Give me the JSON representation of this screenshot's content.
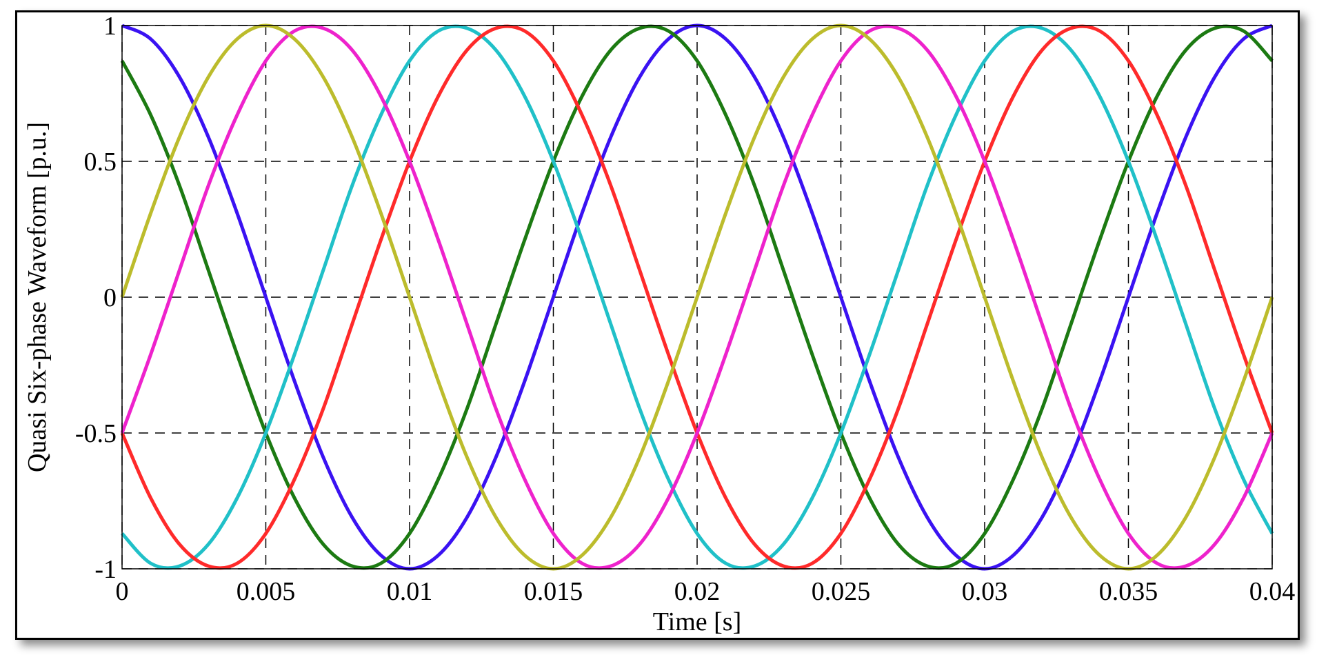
{
  "chart_data": {
    "type": "line",
    "x_label": "Time [s]",
    "y_label": "Quasi Six-phase Waveform [p.u.]",
    "x": [
      0,
      0.001,
      0.002,
      0.003,
      0.004,
      0.005,
      0.006,
      0.007,
      0.008,
      0.009,
      0.01,
      0.011,
      0.012,
      0.013,
      0.014,
      0.015,
      0.016,
      0.017,
      0.018,
      0.019,
      0.02,
      0.021,
      0.022,
      0.023,
      0.024,
      0.025,
      0.026,
      0.027,
      0.028,
      0.029,
      0.03,
      0.031,
      0.032,
      0.033,
      0.034,
      0.035,
      0.036,
      0.037,
      0.038,
      0.039,
      0.04
    ],
    "series": [
      {
        "color": "#3a12f2",
        "values": [
          1,
          0.95,
          0.81,
          0.59,
          0.31,
          0,
          -0.31,
          -0.59,
          -0.81,
          -0.95,
          -1,
          -0.95,
          -0.81,
          -0.59,
          -0.31,
          0,
          0.31,
          0.59,
          0.81,
          0.95,
          1,
          0.95,
          0.81,
          0.59,
          0.31,
          0,
          -0.31,
          -0.59,
          -0.81,
          -0.95,
          -1,
          -0.95,
          -0.81,
          -0.59,
          -0.31,
          0,
          0.31,
          0.59,
          0.81,
          0.95,
          1
        ]
      },
      {
        "color": "#1c7a12",
        "values": [
          0.87,
          0.67,
          0.41,
          0.1,
          -0.21,
          -0.5,
          -0.74,
          -0.91,
          -0.99,
          -0.98,
          -0.87,
          -0.67,
          -0.41,
          -0.1,
          0.21,
          0.5,
          0.74,
          0.91,
          0.99,
          0.98,
          0.87,
          0.67,
          0.41,
          0.1,
          -0.21,
          -0.5,
          -0.74,
          -0.91,
          -0.99,
          -0.98,
          -0.87,
          -0.67,
          -0.41,
          -0.1,
          0.21,
          0.5,
          0.74,
          0.91,
          0.99,
          0.98,
          0.87
        ]
      },
      {
        "color": "#20c0c8",
        "values": [
          -0.87,
          -0.98,
          -0.99,
          -0.91,
          -0.74,
          -0.5,
          -0.21,
          0.1,
          0.41,
          0.67,
          0.87,
          0.98,
          0.99,
          0.91,
          0.74,
          0.5,
          0.21,
          -0.1,
          -0.41,
          -0.67,
          -0.87,
          -0.98,
          -0.99,
          -0.91,
          -0.74,
          -0.5,
          -0.21,
          0.1,
          0.41,
          0.67,
          0.87,
          0.98,
          0.99,
          0.91,
          0.74,
          0.5,
          0.21,
          -0.1,
          -0.41,
          -0.67,
          -0.87
        ]
      },
      {
        "color": "#ff2a2a",
        "values": [
          -0.5,
          -0.74,
          -0.91,
          -0.99,
          -0.98,
          -0.87,
          -0.67,
          -0.41,
          -0.1,
          0.21,
          0.5,
          0.74,
          0.91,
          0.99,
          0.98,
          0.87,
          0.67,
          0.41,
          0.1,
          -0.21,
          -0.5,
          -0.74,
          -0.91,
          -0.99,
          -0.98,
          -0.87,
          -0.67,
          -0.41,
          -0.1,
          0.21,
          0.5,
          0.74,
          0.91,
          0.99,
          0.98,
          0.87,
          0.67,
          0.41,
          0.1,
          -0.21,
          -0.5
        ]
      },
      {
        "color": "#ee22cc",
        "values": [
          -0.5,
          -0.21,
          0.1,
          0.41,
          0.67,
          0.87,
          0.98,
          0.99,
          0.91,
          0.74,
          0.5,
          0.21,
          -0.1,
          -0.41,
          -0.67,
          -0.87,
          -0.98,
          -0.99,
          -0.91,
          -0.74,
          -0.5,
          -0.21,
          0.1,
          0.41,
          0.67,
          0.87,
          0.98,
          0.99,
          0.91,
          0.74,
          0.5,
          0.21,
          -0.1,
          -0.41,
          -0.67,
          -0.87,
          -0.98,
          -0.99,
          -0.91,
          -0.74,
          -0.5
        ]
      },
      {
        "color": "#bcbc2c",
        "values": [
          0,
          0.31,
          0.59,
          0.81,
          0.95,
          1,
          0.95,
          0.81,
          0.59,
          0.31,
          0,
          -0.31,
          -0.59,
          -0.81,
          -0.95,
          -1,
          -0.95,
          -0.81,
          -0.59,
          -0.31,
          0,
          0.31,
          0.59,
          0.81,
          0.95,
          1,
          0.95,
          0.81,
          0.59,
          0.31,
          0,
          -0.31,
          -0.59,
          -0.81,
          -0.95,
          -1,
          -0.95,
          -0.81,
          -0.59,
          -0.31,
          0
        ]
      }
    ],
    "xlim": [
      0,
      0.04
    ],
    "xticks": [
      0,
      0.005,
      0.01,
      0.015,
      0.02,
      0.025,
      0.03,
      0.035,
      0.04
    ],
    "ylim": [
      -1,
      1
    ],
    "yticks": [
      -1,
      -0.5,
      0,
      0.5,
      1
    ],
    "grid": true
  }
}
